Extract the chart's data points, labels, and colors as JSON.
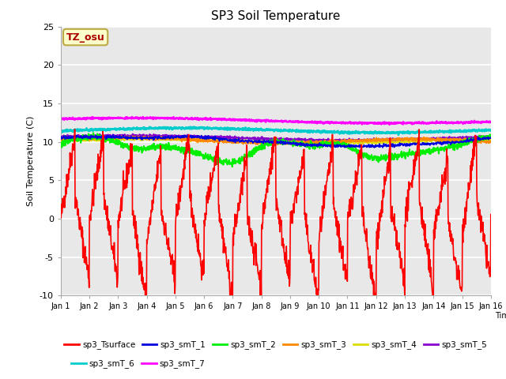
{
  "title": "SP3 Soil Temperature",
  "ylabel": "Soil Temperature (C)",
  "xlabel": "Time",
  "ylim": [
    -10,
    25
  ],
  "xlim": [
    0,
    15
  ],
  "annotation_text": "TZ_osu",
  "annotation_bbox_facecolor": "#ffffcc",
  "annotation_bbox_edgecolor": "#bbaa44",
  "annotation_text_color": "#aa0000",
  "grid_color": "#ffffff",
  "bg_color": "#e8e8e8",
  "series": {
    "sp3_Tsurface": {
      "color": "#ff0000",
      "lw": 1.2,
      "zorder": 5
    },
    "sp3_smT_1": {
      "color": "#0000dd",
      "lw": 1.2,
      "zorder": 4
    },
    "sp3_smT_2": {
      "color": "#00ee00",
      "lw": 1.5,
      "zorder": 3
    },
    "sp3_smT_3": {
      "color": "#ff8800",
      "lw": 1.5,
      "zorder": 3
    },
    "sp3_smT_4": {
      "color": "#dddd00",
      "lw": 1.2,
      "zorder": 3
    },
    "sp3_smT_5": {
      "color": "#8800cc",
      "lw": 1.5,
      "zorder": 3
    },
    "sp3_smT_6": {
      "color": "#00cccc",
      "lw": 1.8,
      "zorder": 2
    },
    "sp3_smT_7": {
      "color": "#ff00ff",
      "lw": 1.8,
      "zorder": 2
    }
  },
  "xtick_labels": [
    "Jan 1",
    "Jan 2",
    "Jan 3",
    "Jan 4",
    "Jan 5",
    "Jan 6",
    "Jan 7",
    "Jan 8",
    "Jan 9",
    "Jan 10",
    "Jan 11",
    "Jan 12",
    "Jan 13",
    "Jan 14",
    "Jan 15",
    "Jan 16"
  ],
  "ytick_values": [
    -10,
    -5,
    0,
    5,
    10,
    15,
    20,
    25
  ],
  "ytick_labels": [
    "-10",
    "-5",
    "0",
    "5",
    "10",
    "15",
    "20",
    "25"
  ],
  "figsize": [
    6.4,
    4.8
  ],
  "dpi": 100
}
